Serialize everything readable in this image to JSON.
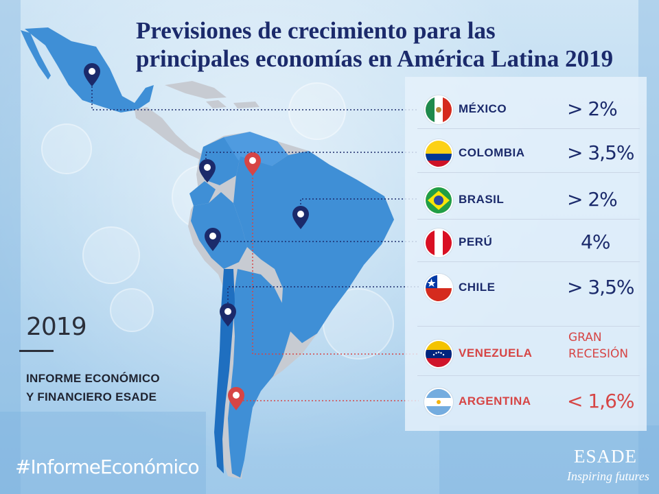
{
  "title": {
    "line1": "Previsiones de crecimiento para las",
    "line2": "principales economías en América Latina 2019"
  },
  "countries": [
    {
      "name": "MÉXICO",
      "value": "> 2%",
      "highlight": false,
      "flag": "mexico-flag-icon"
    },
    {
      "name": "COLOMBIA",
      "value": "> 3,5%",
      "highlight": false,
      "flag": "colombia-flag-icon"
    },
    {
      "name": "BRASIL",
      "value": "> 2%",
      "highlight": false,
      "flag": "brazil-flag-icon"
    },
    {
      "name": "PERÚ",
      "value": "4%",
      "highlight": false,
      "flag": "peru-flag-icon"
    },
    {
      "name": "CHILE",
      "value": "> 3,5%",
      "highlight": false,
      "flag": "chile-flag-icon"
    },
    {
      "name": "VENEZUELA",
      "value_line1": "GRAN",
      "value_line2": "RECESIÓN",
      "highlight": true,
      "flag": "venezuela-flag-icon"
    },
    {
      "name": "ARGENTINA",
      "value": "< 1,6%",
      "highlight": true,
      "flag": "argentina-flag-icon"
    }
  ],
  "side": {
    "year": "2019",
    "report_line1": "INFORME ECONÓMICO",
    "report_line2": "Y FINANCIERO ESADE"
  },
  "hashtag": "#InformeEconómico",
  "brand": {
    "logo": "ESADE",
    "tagline": "Inspiring futures"
  },
  "colors": {
    "title": "#1b2a6b",
    "highlight": "#d64545",
    "map_blue": "#3f8fd6",
    "map_grey": "#c7cbd2",
    "pin_navy": "#1b2a6b",
    "pin_red": "#d64545"
  }
}
